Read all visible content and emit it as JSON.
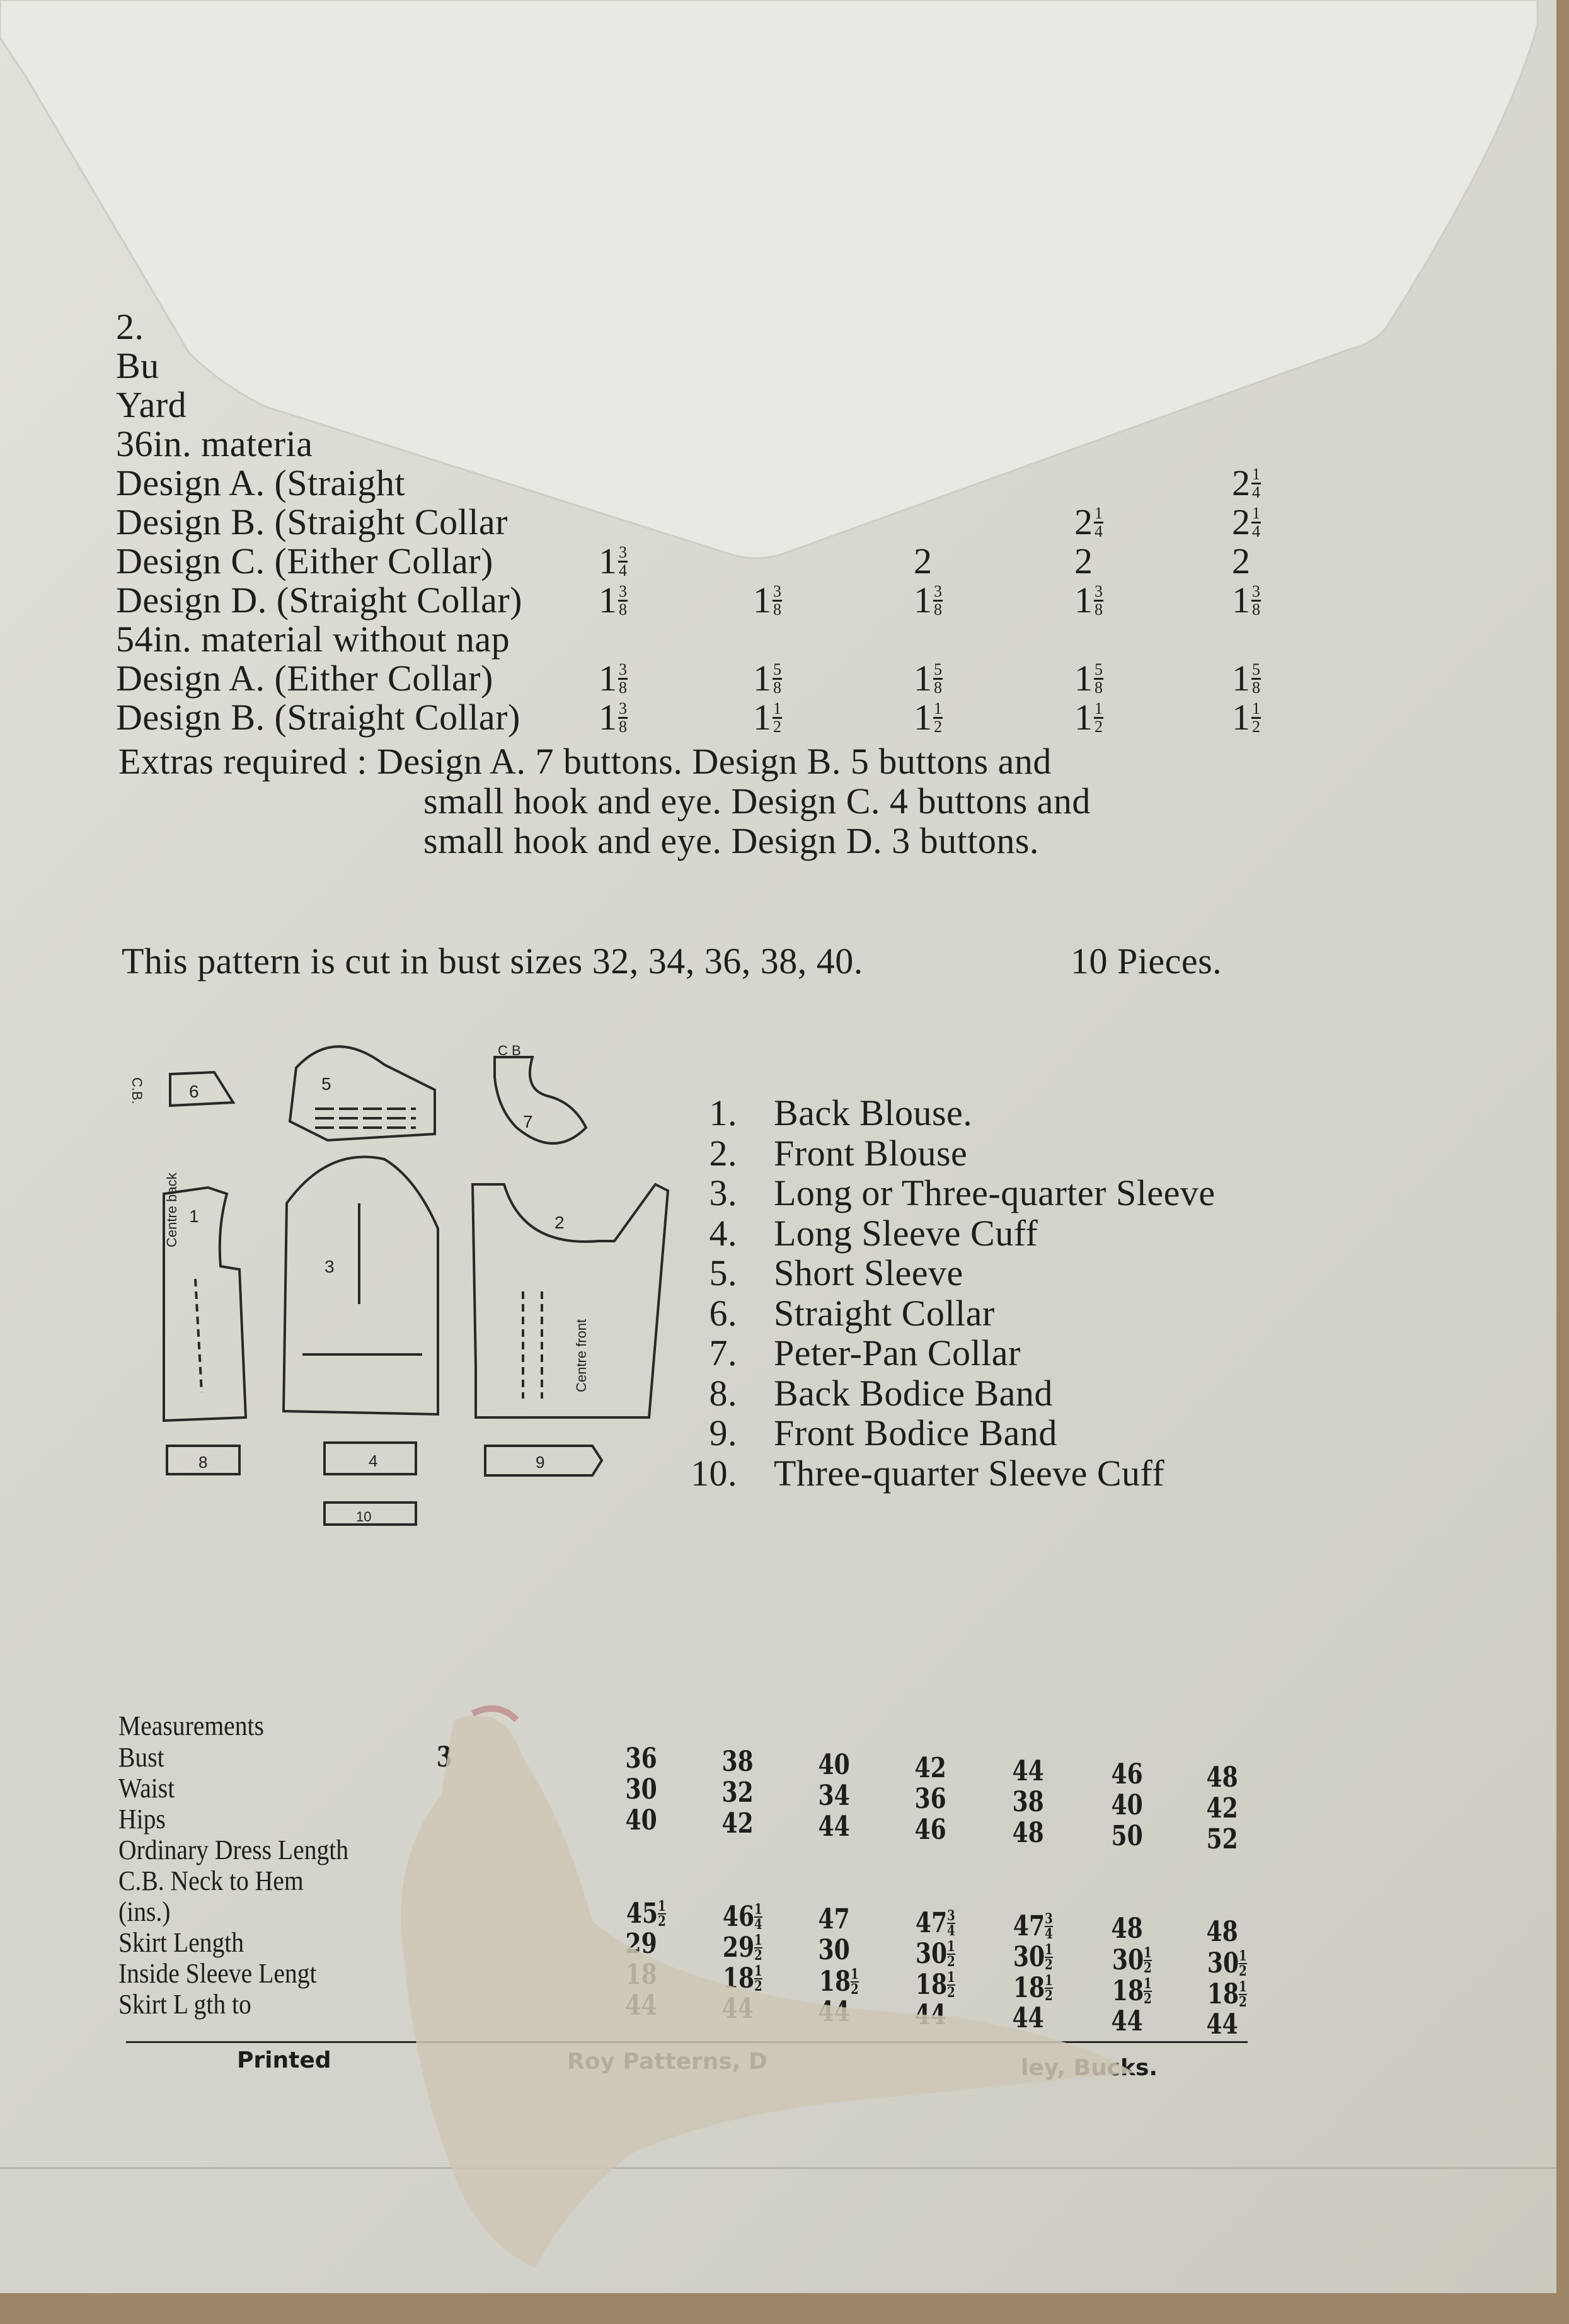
{
  "yardage": {
    "lines": [
      "2.",
      "Bu",
      "Yard",
      "36in. materia",
      "Design A. (Straight",
      "Design B. (Straight Collar",
      "Design C. (Either Collar)",
      "Design D. (Straight Collar)",
      "54in. material without nap",
      "Design A. (Either Collar)",
      "Design B. (Straight Collar)"
    ],
    "values": [
      {
        "row": 4,
        "cells": [
          null,
          null,
          null,
          null,
          {
            "w": "2",
            "n": "1",
            "d": "4"
          }
        ]
      },
      {
        "row": 5,
        "cells": [
          null,
          null,
          null,
          {
            "w": "2",
            "n": "1",
            "d": "4"
          },
          {
            "w": "2",
            "n": "1",
            "d": "4"
          }
        ]
      },
      {
        "row": 6,
        "cells": [
          {
            "w": "1",
            "n": "3",
            "d": "4"
          },
          null,
          {
            "w": "2"
          },
          {
            "w": "2"
          },
          {
            "w": "2"
          }
        ]
      },
      {
        "row": 7,
        "cells": [
          {
            "w": "1",
            "n": "3",
            "d": "8"
          },
          {
            "w": "1",
            "n": "3",
            "d": "8"
          },
          {
            "w": "1",
            "n": "3",
            "d": "8"
          },
          {
            "w": "1",
            "n": "3",
            "d": "8"
          },
          {
            "w": "1",
            "n": "3",
            "d": "8"
          }
        ]
      },
      {
        "row": 9,
        "cells": [
          {
            "w": "1",
            "n": "3",
            "d": "8"
          },
          {
            "w": "1",
            "n": "5",
            "d": "8"
          },
          {
            "w": "1",
            "n": "5",
            "d": "8"
          },
          {
            "w": "1",
            "n": "5",
            "d": "8"
          },
          {
            "w": "1",
            "n": "5",
            "d": "8"
          }
        ]
      },
      {
        "row": 10,
        "cells": [
          {
            "w": "1",
            "n": "3",
            "d": "8"
          },
          {
            "w": "1",
            "n": "1",
            "d": "2"
          },
          {
            "w": "1",
            "n": "1",
            "d": "2"
          },
          {
            "w": "1",
            "n": "1",
            "d": "2"
          },
          {
            "w": "1",
            "n": "1",
            "d": "2"
          }
        ]
      }
    ],
    "extras": [
      "Extras required :  Design A. 7 buttons.  Design B. 5 buttons and",
      "small hook and eye.  Design C. 4 buttons and",
      "small hook and eye.  Design D. 3 buttons."
    ]
  },
  "sizes_note": "This pattern is cut in bust sizes 32, 34, 36, 38, 40.",
  "pieces_count": "10 Pieces.",
  "pieces": [
    {
      "num": "1.",
      "label": "Back Blouse."
    },
    {
      "num": "2.",
      "label": "Front Blouse"
    },
    {
      "num": "3.",
      "label": "Long or Three-quarter Sleeve"
    },
    {
      "num": "4.",
      "label": "Long Sleeve Cuff"
    },
    {
      "num": "5.",
      "label": "Short Sleeve"
    },
    {
      "num": "6.",
      "label": "Straight Collar"
    },
    {
      "num": "7.",
      "label": "Peter-Pan Collar"
    },
    {
      "num": "8.",
      "label": "Back Bodice Band"
    },
    {
      "num": "9.",
      "label": "Front Bodice Band"
    },
    {
      "num": "10.",
      "label": "Three-quarter Sleeve Cuff"
    }
  ],
  "diagram_labels": {
    "cb": "C.B.",
    "cb2": "C B",
    "centre_back": "Centre back",
    "centre_front": "Centre front",
    "n1": "1",
    "n2": "2",
    "n3": "3",
    "n4": "4",
    "n5": "5",
    "n6": "6",
    "n7": "7",
    "n8": "8",
    "n9": "9",
    "n10": "10"
  },
  "measurements": {
    "title": "Measurements",
    "labels": [
      "Bust",
      "Waist",
      "Hips",
      "Ordinary Dress Length",
      "C.B. Neck to Hem",
      "(ins.)",
      "Skirt  Length",
      "Inside Sleeve Lengt",
      "Skirt L   gth to"
    ],
    "partial": "3",
    "rows": [
      {
        "row": 0,
        "vals": [
          [
            "36"
          ],
          [
            "38"
          ],
          [
            "40"
          ],
          [
            "42"
          ],
          [
            "44"
          ],
          [
            "46"
          ],
          [
            "48"
          ]
        ]
      },
      {
        "row": 1,
        "vals": [
          [
            "30"
          ],
          [
            "32"
          ],
          [
            "34"
          ],
          [
            "36"
          ],
          [
            "38"
          ],
          [
            "40"
          ],
          [
            "42"
          ]
        ]
      },
      {
        "row": 2,
        "vals": [
          [
            "40"
          ],
          [
            "42"
          ],
          [
            "44"
          ],
          [
            "46"
          ],
          [
            "48"
          ],
          [
            "50"
          ],
          [
            "52"
          ]
        ]
      },
      {
        "row": 5,
        "vals": [
          [
            "45",
            "1",
            "2"
          ],
          [
            "46",
            "1",
            "4"
          ],
          [
            "47"
          ],
          [
            "47",
            "3",
            "4"
          ],
          [
            "47",
            "3",
            "4"
          ],
          [
            "48"
          ],
          [
            "48"
          ]
        ]
      },
      {
        "row": 6,
        "vals": [
          [
            "29"
          ],
          [
            "29",
            "1",
            "2"
          ],
          [
            "30"
          ],
          [
            "30",
            "1",
            "2"
          ],
          [
            "30",
            "1",
            "2"
          ],
          [
            "30",
            "1",
            "2"
          ],
          [
            "30",
            "1",
            "2"
          ]
        ]
      },
      {
        "row": 7,
        "vals": [
          [
            "18"
          ],
          [
            "18",
            "1",
            "2"
          ],
          [
            "18",
            "1",
            "2"
          ],
          [
            "18",
            "1",
            "2"
          ],
          [
            "18",
            "1",
            "2"
          ],
          [
            "18",
            "1",
            "2"
          ],
          [
            "18",
            "1",
            "2"
          ]
        ]
      },
      {
        "row": 8,
        "vals": [
          [
            "44"
          ],
          [
            "44"
          ],
          [
            "44"
          ],
          [
            "44"
          ],
          [
            "44"
          ],
          [
            "44"
          ],
          [
            "44"
          ]
        ]
      }
    ]
  },
  "footer": {
    "left": "Printed",
    "mid": "Roy Patterns, D",
    "right": "ley, Bucks."
  }
}
